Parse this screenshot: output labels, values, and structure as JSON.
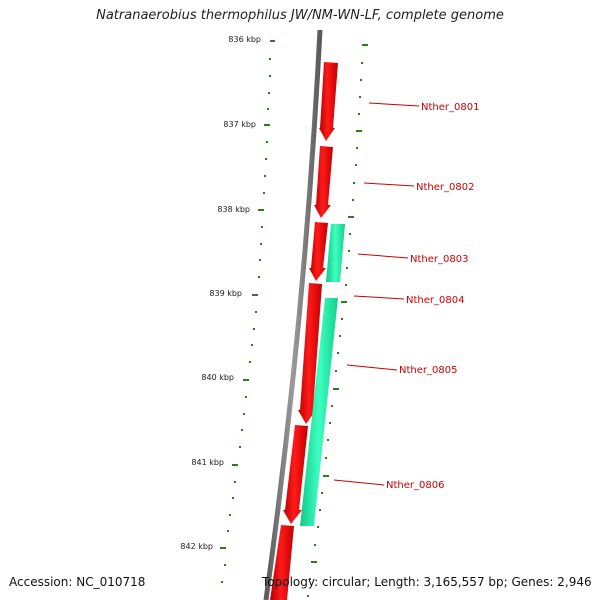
{
  "header": {
    "title": "Natranaerobius thermophilus JW/NM-WN-LF, complete genome"
  },
  "footer": {
    "accession": "Accession: NC_010718",
    "topology": "Topology: circular; Length: 3,165,557 bp; Genes: 2,946"
  },
  "colors": {
    "forward_gene": "#e60000",
    "reverse_gene": "#22e8a0",
    "backbone": "#7a7a7a",
    "ticks": "#2e7d1a",
    "label": "#cc0000"
  },
  "ruler": {
    "labels": [
      "836 kbp",
      "837 kbp",
      "838 kbp",
      "839 kbp",
      "840 kbp",
      "841 kbp",
      "842 kbp"
    ]
  },
  "genes": [
    {
      "name": "Nther_0801",
      "strand": "+"
    },
    {
      "name": "Nther_0802",
      "strand": "+"
    },
    {
      "name": "Nther_0803",
      "strand": "-"
    },
    {
      "name": "Nther_0804",
      "strand": "+"
    },
    {
      "name": "Nther_0805",
      "strand": "+"
    },
    {
      "name": "Nther_0806",
      "strand": "-"
    }
  ]
}
